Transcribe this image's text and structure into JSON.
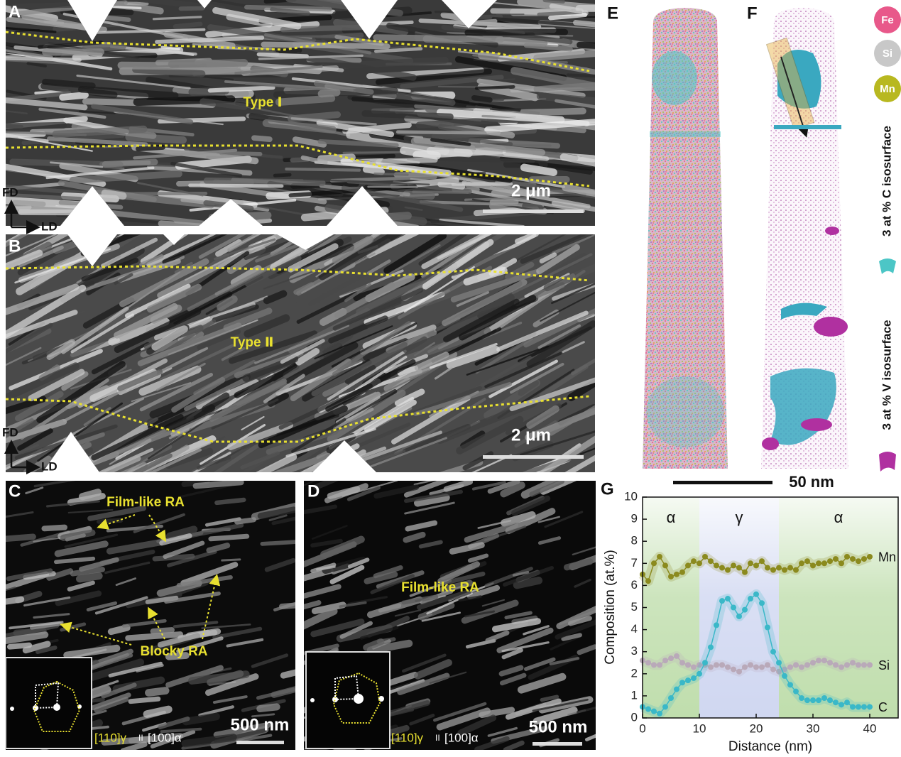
{
  "panels": {
    "A": {
      "label": "A",
      "annotation": "Type Ⅰ",
      "scale_bar": "2 μm",
      "axis_fd": "FD",
      "axis_ld": "LD"
    },
    "B": {
      "label": "B",
      "annotation": "Type Ⅱ",
      "scale_bar": "2 μm",
      "axis_fd": "FD",
      "axis_ld": "LD"
    },
    "C": {
      "label": "C",
      "annotations": [
        "Film-like RA",
        "Blocky RA"
      ],
      "zone_axis": {
        "gamma": "[110]γ",
        "parallel": "II",
        "alpha": "[100]α"
      },
      "scale_bar": "500 nm"
    },
    "D": {
      "label": "D",
      "annotations": [
        "Film-like RA"
      ],
      "zone_axis": {
        "gamma": "[110]γ",
        "parallel": "II",
        "alpha": "[100]α"
      },
      "scale_bar": "500 nm"
    },
    "E": {
      "label": "E"
    },
    "F": {
      "label": "F"
    },
    "legend": [
      "Fe",
      "Si",
      "Mn",
      "3 at % C isosurface",
      "3 at % V isosurface"
    ],
    "scale_bar_EF": "50 nm"
  },
  "chart_data": {
    "type": "line",
    "label": "G",
    "xlabel": "Distance (nm)",
    "ylabel": "Composition (at.%)",
    "x": [
      0,
      1,
      2,
      3,
      4,
      5,
      6,
      7,
      8,
      9,
      10,
      11,
      12,
      13,
      14,
      15,
      16,
      17,
      18,
      19,
      20,
      21,
      22,
      23,
      24,
      25,
      26,
      27,
      28,
      29,
      30,
      31,
      32,
      33,
      34,
      35,
      36,
      37,
      38,
      39,
      40
    ],
    "series": [
      {
        "name": "Mn",
        "color": "#8b8a1e",
        "values": [
          6.5,
          6.2,
          7.0,
          7.3,
          6.9,
          6.4,
          6.5,
          6.6,
          6.9,
          7.1,
          7.0,
          7.3,
          7.1,
          6.9,
          6.8,
          6.7,
          6.9,
          6.8,
          6.6,
          7.0,
          6.9,
          7.1,
          6.8,
          6.7,
          6.8,
          6.7,
          6.8,
          6.7,
          7.0,
          7.1,
          6.9,
          7.0,
          7.0,
          7.1,
          7.2,
          7.0,
          7.3,
          7.2,
          7.1,
          7.2,
          7.3
        ]
      },
      {
        "name": "Si",
        "color": "#b9a9b9",
        "values": [
          2.6,
          2.5,
          2.4,
          2.4,
          2.6,
          2.7,
          2.8,
          2.5,
          2.4,
          2.3,
          2.4,
          2.4,
          2.3,
          2.4,
          2.4,
          2.3,
          2.2,
          2.1,
          2.3,
          2.4,
          2.3,
          2.3,
          2.4,
          2.2,
          2.1,
          2.2,
          2.3,
          2.4,
          2.3,
          2.4,
          2.5,
          2.6,
          2.6,
          2.5,
          2.4,
          2.3,
          2.4,
          2.5,
          2.4,
          2.4,
          2.4
        ]
      },
      {
        "name": "C",
        "color": "#3ab8c8",
        "values": [
          0.5,
          0.4,
          0.3,
          0.2,
          0.5,
          0.9,
          1.3,
          1.6,
          1.7,
          1.8,
          2.0,
          2.5,
          3.2,
          4.2,
          5.3,
          5.4,
          5.0,
          4.6,
          4.9,
          5.4,
          5.6,
          5.2,
          4.1,
          3.0,
          2.5,
          1.9,
          1.5,
          1.2,
          0.9,
          0.8,
          0.8,
          0.8,
          0.9,
          0.8,
          0.7,
          0.6,
          0.7,
          0.5,
          0.5,
          0.5,
          0.5
        ]
      }
    ],
    "regions": [
      {
        "label": "α",
        "range": [
          0,
          10
        ],
        "color": "#8dc26a"
      },
      {
        "label": "γ",
        "range": [
          10,
          24
        ],
        "color": "#a9b6e6"
      },
      {
        "label": "α",
        "range": [
          24,
          45
        ],
        "color": "#8dc26a"
      }
    ],
    "xlim": [
      0,
      45
    ],
    "ylim": [
      0,
      10
    ],
    "xticks": [
      0,
      10,
      20,
      30,
      40
    ],
    "yticks": [
      0,
      1,
      2,
      3,
      4,
      5,
      6,
      7,
      8,
      9,
      10
    ]
  }
}
